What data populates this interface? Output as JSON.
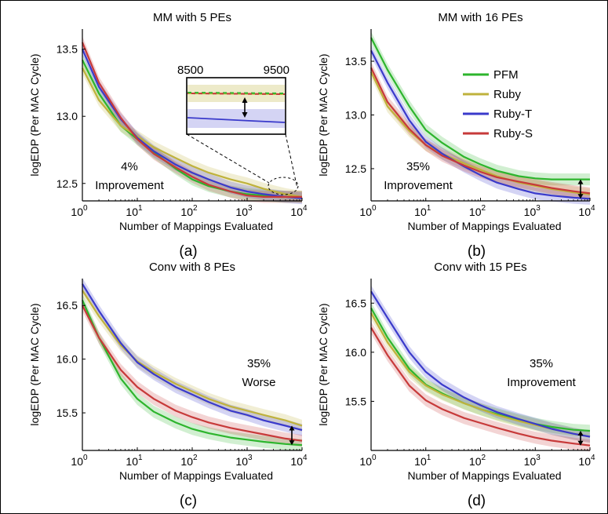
{
  "colors": {
    "PFM": "#2db52d",
    "Ruby": "#bfb23c",
    "Ruby-T": "#3a3acb",
    "Ruby-S": "#c73a3a"
  },
  "legend": [
    "PFM",
    "Ruby",
    "Ruby-T",
    "Ruby-S"
  ],
  "chart_data": [
    {
      "type": "line",
      "panel_label": "(a)",
      "title": "MM with 5 PEs",
      "xlabel": "Number of Mappings Evaluated",
      "ylabel": "logEDP (Per MAC Cycle)",
      "xscale": "log",
      "xlim": [
        1,
        10000
      ],
      "ylim": [
        12.37,
        13.65
      ],
      "yticks": [
        12.5,
        13.0,
        13.5
      ],
      "ytick_labels": [
        "12.5",
        "13.0",
        "13.5"
      ],
      "xtick_labels": [
        "10",
        "10",
        "10",
        "10",
        "10"
      ],
      "xtick_exponents": [
        "0",
        "1",
        "2",
        "3",
        "4"
      ],
      "annotation": [
        "4%",
        "Improvement"
      ],
      "inset": {
        "xtick_labels": [
          "8500",
          "9500"
        ]
      },
      "series": [
        {
          "name": "PFM",
          "x": [
            1,
            2,
            5,
            10,
            20,
            50,
            100,
            200,
            500,
            1000,
            2000,
            5000,
            10000
          ],
          "y": [
            13.42,
            13.17,
            12.93,
            12.83,
            12.73,
            12.61,
            12.53,
            12.48,
            12.44,
            12.42,
            12.41,
            12.4,
            12.4
          ]
        },
        {
          "name": "Ruby",
          "x": [
            1,
            2,
            5,
            10,
            20,
            50,
            100,
            200,
            500,
            1000,
            2000,
            5000,
            10000
          ],
          "y": [
            13.36,
            13.12,
            12.93,
            12.85,
            12.77,
            12.69,
            12.63,
            12.58,
            12.53,
            12.5,
            12.46,
            12.42,
            12.4
          ]
        },
        {
          "name": "Ruby-T",
          "x": [
            1,
            2,
            5,
            10,
            20,
            50,
            100,
            200,
            500,
            1000,
            2000,
            5000,
            10000
          ],
          "y": [
            13.5,
            13.22,
            12.98,
            12.84,
            12.74,
            12.64,
            12.58,
            12.53,
            12.47,
            12.44,
            12.42,
            12.4,
            12.39
          ]
        },
        {
          "name": "Ruby-S",
          "x": [
            1,
            2,
            5,
            10,
            20,
            50,
            100,
            200,
            500,
            1000,
            2000,
            5000,
            10000
          ],
          "y": [
            13.55,
            13.25,
            12.99,
            12.83,
            12.72,
            12.62,
            12.55,
            12.49,
            12.44,
            12.41,
            12.4,
            12.4,
            12.4
          ]
        }
      ]
    },
    {
      "type": "line",
      "panel_label": "(b)",
      "title": "MM with 16 PEs",
      "xlabel": "Number of Mappings Evaluated",
      "ylabel": "logEDP (Per MAC Cycle)",
      "xscale": "log",
      "xlim": [
        1,
        10000
      ],
      "ylim": [
        12.2,
        13.8
      ],
      "yticks": [
        12.5,
        13.0,
        13.5
      ],
      "ytick_labels": [
        "12.5",
        "13.0",
        "13.5"
      ],
      "xtick_labels": [
        "10",
        "10",
        "10",
        "10",
        "10"
      ],
      "xtick_exponents": [
        "0",
        "1",
        "2",
        "3",
        "4"
      ],
      "annotation": [
        "35%",
        "Improvement"
      ],
      "series": [
        {
          "name": "PFM",
          "x": [
            1,
            2,
            5,
            10,
            20,
            50,
            100,
            200,
            500,
            1000,
            2000,
            5000,
            10000
          ],
          "y": [
            13.72,
            13.42,
            13.08,
            12.86,
            12.74,
            12.61,
            12.54,
            12.48,
            12.43,
            12.41,
            12.4,
            12.4,
            12.4
          ]
        },
        {
          "name": "Ruby",
          "x": [
            1,
            2,
            5,
            10,
            20,
            50,
            100,
            200,
            500,
            1000,
            2000,
            5000,
            10000
          ],
          "y": [
            13.4,
            13.08,
            12.85,
            12.72,
            12.64,
            12.55,
            12.49,
            12.43,
            12.37,
            12.34,
            12.31,
            12.28,
            12.26
          ]
        },
        {
          "name": "Ruby-T",
          "x": [
            1,
            2,
            5,
            10,
            20,
            50,
            100,
            200,
            500,
            1000,
            2000,
            5000,
            10000
          ],
          "y": [
            13.6,
            13.3,
            12.95,
            12.75,
            12.64,
            12.52,
            12.44,
            12.37,
            12.31,
            12.27,
            12.25,
            12.23,
            12.22
          ]
        },
        {
          "name": "Ruby-S",
          "x": [
            1,
            2,
            5,
            10,
            20,
            50,
            100,
            200,
            500,
            1000,
            2000,
            5000,
            10000
          ],
          "y": [
            13.44,
            13.12,
            12.87,
            12.72,
            12.62,
            12.53,
            12.47,
            12.42,
            12.38,
            12.35,
            12.32,
            12.29,
            12.27
          ]
        }
      ]
    },
    {
      "type": "line",
      "panel_label": "(c)",
      "title": "Conv with 8 PEs",
      "xlabel": "Number of Mappings Evaluated",
      "ylabel": "logEDP (Per MAC Cycle)",
      "xscale": "log",
      "xlim": [
        1,
        10000
      ],
      "ylim": [
        15.15,
        16.75
      ],
      "yticks": [
        15.5,
        16.0,
        16.5
      ],
      "ytick_labels": [
        "15.5",
        "16.0",
        "16.5"
      ],
      "xtick_labels": [
        "10",
        "10",
        "10",
        "10",
        "10"
      ],
      "xtick_exponents": [
        "0",
        "1",
        "2",
        "3",
        "4"
      ],
      "annotation": [
        "35%",
        "Worse"
      ],
      "series": [
        {
          "name": "PFM",
          "x": [
            1,
            2,
            5,
            10,
            20,
            50,
            100,
            200,
            500,
            1000,
            2000,
            5000,
            10000
          ],
          "y": [
            16.55,
            16.2,
            15.82,
            15.63,
            15.51,
            15.41,
            15.35,
            15.31,
            15.27,
            15.25,
            15.23,
            15.21,
            15.2
          ]
        },
        {
          "name": "Ruby",
          "x": [
            1,
            2,
            5,
            10,
            20,
            50,
            100,
            200,
            500,
            1000,
            2000,
            5000,
            10000
          ],
          "y": [
            16.64,
            16.4,
            16.13,
            15.98,
            15.88,
            15.77,
            15.7,
            15.63,
            15.56,
            15.52,
            15.48,
            15.43,
            15.38
          ]
        },
        {
          "name": "Ruby-T",
          "x": [
            1,
            2,
            5,
            10,
            20,
            50,
            100,
            200,
            500,
            1000,
            2000,
            5000,
            10000
          ],
          "y": [
            16.7,
            16.45,
            16.15,
            15.97,
            15.86,
            15.74,
            15.67,
            15.6,
            15.52,
            15.48,
            15.43,
            15.38,
            15.34
          ]
        },
        {
          "name": "Ruby-S",
          "x": [
            1,
            2,
            5,
            10,
            20,
            50,
            100,
            200,
            500,
            1000,
            2000,
            5000,
            10000
          ],
          "y": [
            16.5,
            16.2,
            15.9,
            15.74,
            15.63,
            15.52,
            15.46,
            15.41,
            15.36,
            15.33,
            15.3,
            15.26,
            15.24
          ]
        }
      ]
    },
    {
      "type": "line",
      "panel_label": "(d)",
      "title": "Conv with 15 PEs",
      "xlabel": "Number of Mappings Evaluated",
      "ylabel": "logEDP (Per MAC Cycle)",
      "xscale": "log",
      "xlim": [
        1,
        10000
      ],
      "ylim": [
        15.0,
        16.75
      ],
      "yticks": [
        15.5,
        16.0,
        16.5
      ],
      "ytick_labels": [
        "15.5",
        "16.0",
        "16.5"
      ],
      "xtick_labels": [
        "10",
        "10",
        "10",
        "10",
        "10"
      ],
      "xtick_exponents": [
        "0",
        "1",
        "2",
        "3",
        "4"
      ],
      "annotation": [
        "35%",
        "Improvement"
      ],
      "series": [
        {
          "name": "PFM",
          "x": [
            1,
            2,
            5,
            10,
            20,
            50,
            100,
            200,
            500,
            1000,
            2000,
            5000,
            10000
          ],
          "y": [
            16.45,
            16.15,
            15.83,
            15.67,
            15.58,
            15.48,
            15.42,
            15.37,
            15.31,
            15.27,
            15.24,
            15.21,
            15.2
          ]
        },
        {
          "name": "Ruby",
          "x": [
            1,
            2,
            5,
            10,
            20,
            50,
            100,
            200,
            500,
            1000,
            2000,
            5000,
            10000
          ],
          "y": [
            16.4,
            16.1,
            15.8,
            15.66,
            15.57,
            15.48,
            15.42,
            15.36,
            15.3,
            15.26,
            15.22,
            15.17,
            15.14
          ]
        },
        {
          "name": "Ruby-T",
          "x": [
            1,
            2,
            5,
            10,
            20,
            50,
            100,
            200,
            500,
            1000,
            2000,
            5000,
            10000
          ],
          "y": [
            16.62,
            16.35,
            16.0,
            15.8,
            15.67,
            15.54,
            15.46,
            15.39,
            15.32,
            15.27,
            15.22,
            15.17,
            15.14
          ]
        },
        {
          "name": "Ruby-S",
          "x": [
            1,
            2,
            5,
            10,
            20,
            50,
            100,
            200,
            500,
            1000,
            2000,
            5000,
            10000
          ],
          "y": [
            16.25,
            15.97,
            15.66,
            15.51,
            15.42,
            15.33,
            15.28,
            15.23,
            15.17,
            15.13,
            15.1,
            15.07,
            15.05
          ]
        }
      ]
    }
  ]
}
